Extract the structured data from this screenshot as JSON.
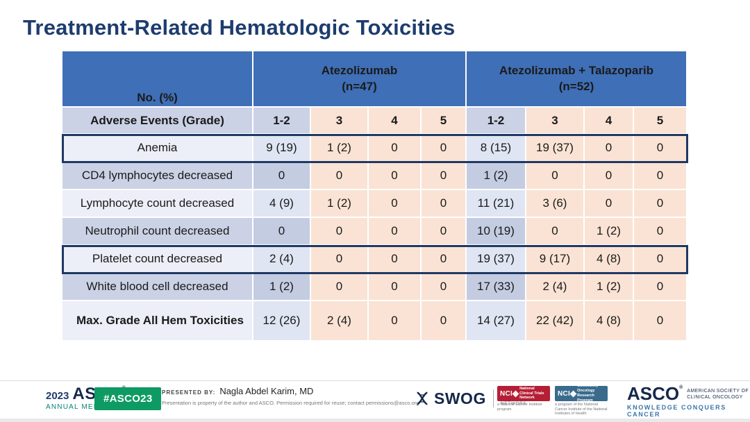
{
  "slide": {
    "title": "Treatment-Related Hematologic Toxicities"
  },
  "table": {
    "corner_label": "No. (%)",
    "groups": [
      {
        "name": "Atezolizumab",
        "n": "(n=47)"
      },
      {
        "name": "Atezolizumab + Talazoparib",
        "n": "(n=52)"
      }
    ],
    "subheader_label": "Adverse Events (Grade)",
    "grade_headers": [
      "1-2",
      "3",
      "4",
      "5",
      "1-2",
      "3",
      "4",
      "5"
    ],
    "rows": [
      {
        "label": "Anemia",
        "values": [
          "9 (19)",
          "1 (2)",
          "0",
          "0",
          "8 (15)",
          "19 (37)",
          "0",
          "0"
        ],
        "highlight": true
      },
      {
        "label": "CD4 lymphocytes decreased",
        "values": [
          "0",
          "0",
          "0",
          "0",
          "1 (2)",
          "0",
          "0",
          "0"
        ]
      },
      {
        "label": "Lymphocyte count decreased",
        "values": [
          "4 (9)",
          "1 (2)",
          "0",
          "0",
          "11 (21)",
          "3 (6)",
          "0",
          "0"
        ]
      },
      {
        "label": "Neutrophil count decreased",
        "values": [
          "0",
          "0",
          "0",
          "0",
          "10 (19)",
          "0",
          "1 (2)",
          "0"
        ]
      },
      {
        "label": "Platelet count decreased",
        "values": [
          "2 (4)",
          "0",
          "0",
          "0",
          "19 (37)",
          "9 (17)",
          "4 (8)",
          "0"
        ],
        "highlight": true
      },
      {
        "label": "White blood cell decreased",
        "values": [
          "1 (2)",
          "0",
          "0",
          "0",
          "17 (33)",
          "2 (4)",
          "1 (2)",
          "0"
        ]
      },
      {
        "label": "Max. Grade All Hem Toxicities",
        "values": [
          "12 (26)",
          "2 (4)",
          "0",
          "0",
          "14 (27)",
          "22 (42)",
          "4 (8)",
          "0"
        ],
        "bold": true
      }
    ]
  },
  "footer": {
    "meeting_logo": {
      "year": "2023",
      "org": "ASCO",
      "sub": "ANNUAL MEETING"
    },
    "hashtag": "#ASCO23",
    "presented_by_label": "PRESENTED BY:",
    "presenter": "Nagla Abdel Karim, MD",
    "disclaimer": "Presentation is property of the author and ASCO. Permission required for reuse; contact permissions@asco.org",
    "swog": {
      "name": "SWOG",
      "network": "CANCER RESEARCH NETWORK"
    },
    "nci_red": {
      "tag": "NCI",
      "text": "National Clinical Trials Network",
      "caption": "a National Cancer Institute program"
    },
    "nci_blue": {
      "tag": "NCI",
      "text": "Community Oncology Research Program",
      "caption": "a program of the National Cancer Institute of the National Institutes of Health"
    },
    "asco_logo": {
      "name": "ASCO",
      "society": "AMERICAN SOCIETY OF CLINICAL ONCOLOGY",
      "tagline": "KNOWLEDGE CONQUERS CANCER"
    }
  },
  "colors": {
    "title_navy": "#1E3C6E",
    "header_blue": "#3F6FB6",
    "lavender_light": "#ECEFF7",
    "lavender_dark": "#CBD2E5",
    "peach": "#FAE3D4",
    "highlight_border": "#1F3864",
    "badge_green": "#0D9B63",
    "meeting_teal": "#00847A",
    "nci_red": "#B51E34",
    "nci_blue": "#3A6B8C"
  }
}
